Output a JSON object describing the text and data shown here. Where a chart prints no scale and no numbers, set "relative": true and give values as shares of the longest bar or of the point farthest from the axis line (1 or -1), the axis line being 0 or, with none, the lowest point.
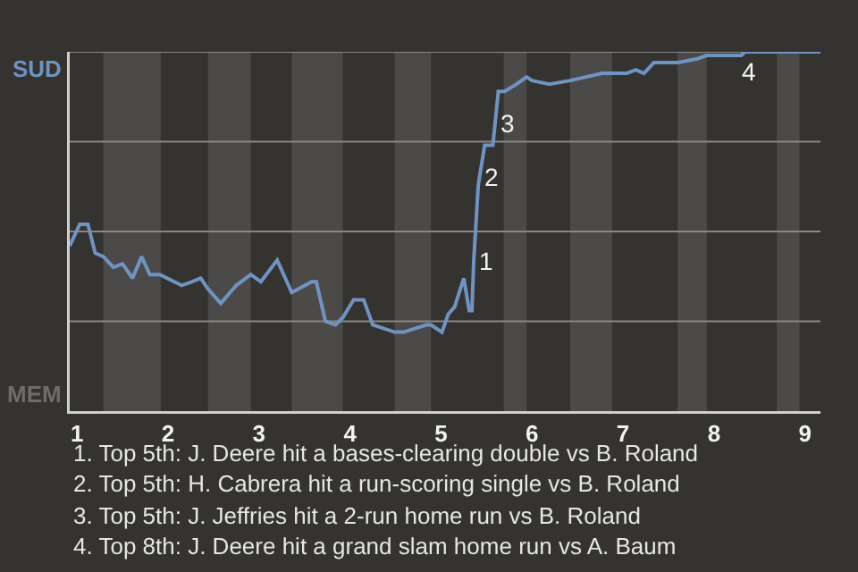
{
  "chart_data": {
    "type": "line",
    "relative": true,
    "xlim": [
      0.92,
      9.17
    ],
    "xticks": [
      1,
      2,
      3,
      4,
      5,
      6,
      7,
      8,
      9
    ],
    "marker": "none",
    "line_style": "solid",
    "series": [
      {
        "color": "#6f93c3",
        "x": [
          0.92,
          1.03,
          1.12,
          1.2,
          1.29,
          1.4,
          1.5,
          1.61,
          1.71,
          1.8,
          1.91,
          2.15,
          2.26,
          2.36,
          2.44,
          2.58,
          2.75,
          2.91,
          3.02,
          3.2,
          3.36,
          3.58,
          3.63,
          3.73,
          3.84,
          3.92,
          4.04,
          4.15,
          4.25,
          4.49,
          4.59,
          4.84,
          4.89,
          5.01,
          5.08,
          5.15,
          5.25,
          5.31,
          5.34,
          5.36,
          5.41,
          5.48,
          5.57,
          5.63,
          5.7,
          5.83,
          5.94,
          6.0,
          6.19,
          6.42,
          6.77,
          6.88,
          7.04,
          7.14,
          7.23,
          7.34,
          7.6,
          7.81,
          7.92,
          8.03,
          8.3,
          8.34,
          8.69,
          8.94,
          9.17
        ],
        "values": [
          0.46,
          0.52,
          0.52,
          0.44,
          0.43,
          0.4,
          0.41,
          0.37,
          0.43,
          0.38,
          0.38,
          0.35,
          0.36,
          0.37,
          0.34,
          0.3,
          0.35,
          0.38,
          0.36,
          0.42,
          0.33,
          0.36,
          0.36,
          0.25,
          0.24,
          0.26,
          0.31,
          0.31,
          0.24,
          0.22,
          0.22,
          0.24,
          0.24,
          0.22,
          0.27,
          0.29,
          0.37,
          0.28,
          0.28,
          0.42,
          0.63,
          0.74,
          0.74,
          0.89,
          0.89,
          0.91,
          0.93,
          0.92,
          0.91,
          0.92,
          0.94,
          0.94,
          0.94,
          0.95,
          0.94,
          0.97,
          0.97,
          0.98,
          0.99,
          0.99,
          0.99,
          1,
          1,
          1,
          1
        ]
      }
    ],
    "ref_lines": [
      {
        "axis": "y",
        "value": 0.25,
        "color": "#8a8886"
      },
      {
        "axis": "y",
        "value": 0.5,
        "color": "#8a8886"
      },
      {
        "axis": "y",
        "value": 0.75,
        "color": "#8a8886"
      },
      {
        "axis": "y",
        "value": 1,
        "color": "#8a8886"
      }
    ],
    "bands": [
      {
        "axis": "x",
        "from": 1.29,
        "to": 1.92,
        "color": "#4c4a48"
      },
      {
        "axis": "x",
        "from": 2.44,
        "to": 2.91,
        "color": "#4c4a48"
      },
      {
        "axis": "x",
        "from": 3.36,
        "to": 3.92,
        "color": "#4c4a48"
      },
      {
        "axis": "x",
        "from": 4.49,
        "to": 4.89,
        "color": "#4c4a48"
      },
      {
        "axis": "x",
        "from": 5.69,
        "to": 5.94,
        "color": "#4c4a48"
      },
      {
        "axis": "x",
        "from": 6.42,
        "to": 6.88,
        "color": "#4c4a48"
      },
      {
        "axis": "x",
        "from": 7.6,
        "to": 7.92,
        "color": "#4c4a48"
      },
      {
        "axis": "x",
        "from": 8.69,
        "to": 8.94,
        "color": "#4c4a48"
      }
    ],
    "annotations": [
      "SUD",
      "MEM",
      {
        "text": "1",
        "x": 5.36,
        "y": 0.42
      },
      {
        "text": "2",
        "x": 5.42,
        "y": 0.65
      },
      {
        "text": "3",
        "x": 5.6,
        "y": 0.8
      },
      {
        "text": "4",
        "x": 8.34,
        "y": 1
      },
      "1. Top 5th: J. Deere hit a bases-clearing double vs B. Roland",
      "2. Top 5th: H. Cabrera hit a run-scoring single vs B. Roland",
      "3. Top 5th: J. Jeffries hit a 2-run home run vs B. Roland",
      "4. Top 8th: J. Deere hit a grand slam home run vs A. Baum"
    ]
  }
}
